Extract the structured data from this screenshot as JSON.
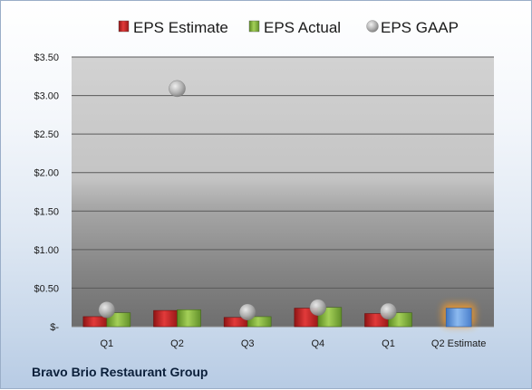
{
  "chart_data": {
    "type": "bar",
    "categories": [
      "Q1",
      "Q2",
      "Q3",
      "Q4",
      "Q1",
      "Q2 Estimate"
    ],
    "series": [
      {
        "name": "EPS Estimate",
        "type": "bar",
        "color": "#d42a2a",
        "values": [
          0.13,
          0.21,
          0.12,
          0.24,
          0.17,
          null
        ]
      },
      {
        "name": "EPS Actual",
        "type": "bar",
        "color": "#8cbf3f",
        "values": [
          0.18,
          0.22,
          0.13,
          0.25,
          0.18,
          null
        ]
      },
      {
        "name": "EPS GAAP",
        "type": "marker",
        "color": "#b8b8b8",
        "values": [
          0.22,
          3.09,
          0.19,
          0.25,
          0.2,
          null
        ]
      },
      {
        "name": "",
        "type": "bar",
        "color": "#6aa2e6",
        "glow": "#f39a2b",
        "values": [
          null,
          null,
          null,
          null,
          null,
          0.24
        ]
      }
    ],
    "y_ticks": [
      "$-",
      "$0.50",
      "$1.00",
      "$1.50",
      "$2.00",
      "$2.50",
      "$3.00",
      "$3.50"
    ],
    "ylim": [
      0,
      3.5
    ],
    "grid": true,
    "legend_position": "top"
  },
  "brand": "Bravo Brio Restaurant Group"
}
